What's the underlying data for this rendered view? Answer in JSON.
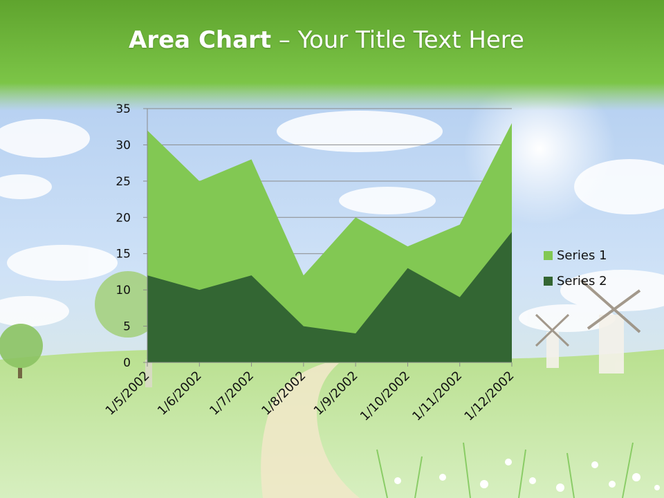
{
  "slide": {
    "title_bold": "Area Chart",
    "title_rest": " – Your Title Text Here"
  },
  "colors": {
    "series1": "#82c853",
    "series2": "#336633",
    "header_green": "#6fbf3a"
  },
  "chart_data": {
    "type": "area",
    "title": "",
    "xlabel": "",
    "ylabel": "",
    "categories": [
      "1/5/2002",
      "1/6/2002",
      "1/7/2002",
      "1/8/2002",
      "1/9/2002",
      "1/10/2002",
      "1/11/2002",
      "1/12/2002"
    ],
    "series": [
      {
        "name": "Series 1",
        "values": [
          32,
          25,
          28,
          12,
          20,
          16,
          19,
          33
        ]
      },
      {
        "name": "Series 2",
        "values": [
          12,
          10,
          12,
          5,
          4,
          13,
          9,
          18
        ]
      }
    ],
    "ylim": [
      0,
      35
    ],
    "yticks": [
      0,
      5,
      10,
      15,
      20,
      25,
      30,
      35
    ],
    "grid": true,
    "legend": "right"
  }
}
